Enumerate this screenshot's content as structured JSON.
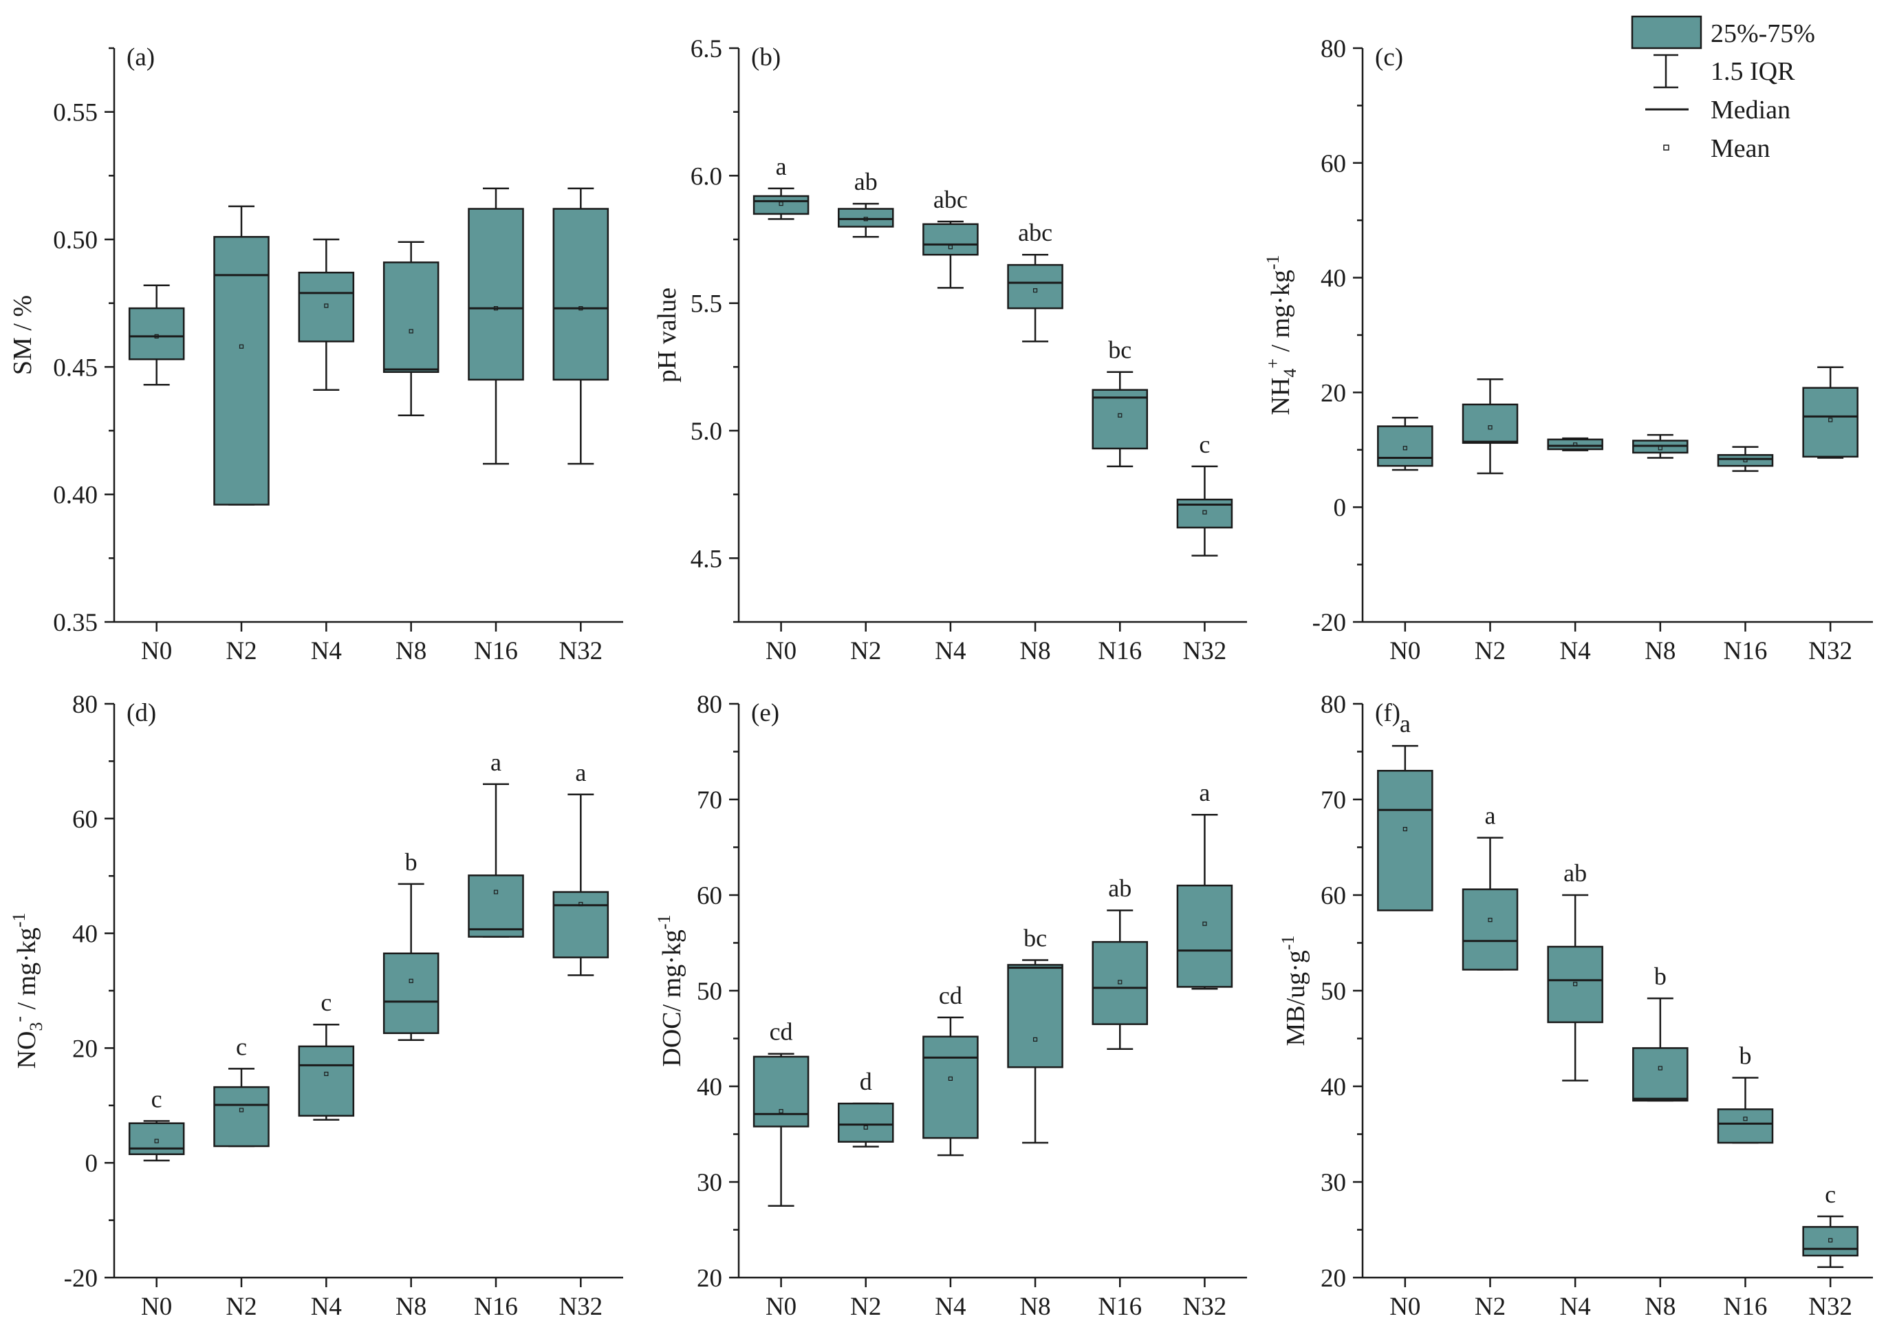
{
  "chart_data": {
    "type": "box",
    "categories": [
      "N0",
      "N2",
      "N4",
      "N8",
      "N16",
      "N32"
    ],
    "colors": {
      "box_fill": "#5f9797",
      "line": "#1a1a1a"
    },
    "legend": {
      "box": "25%-75%",
      "whisker": "1.5 IQR",
      "median": "Median",
      "mean": "Mean"
    },
    "panels": [
      {
        "id": "a",
        "label": "(a)",
        "ylabel": [
          {
            "t": "SM / %"
          }
        ],
        "ylim": [
          0.35,
          0.575
        ],
        "yticks": [
          "0.35",
          "0.40",
          "0.45",
          "0.50",
          "0.55"
        ],
        "boxes": [
          {
            "min": 0.443,
            "q1": 0.453,
            "median": 0.462,
            "q3": 0.473,
            "max": 0.482,
            "mean": 0.462
          },
          {
            "min": 0.396,
            "q1": 0.396,
            "median": 0.486,
            "q3": 0.501,
            "max": 0.513,
            "mean": 0.458
          },
          {
            "min": 0.441,
            "q1": 0.46,
            "median": 0.479,
            "q3": 0.487,
            "max": 0.5,
            "mean": 0.474
          },
          {
            "min": 0.431,
            "q1": 0.448,
            "median": 0.449,
            "q3": 0.491,
            "max": 0.499,
            "mean": 0.464
          },
          {
            "min": 0.412,
            "q1": 0.445,
            "median": 0.473,
            "q3": 0.512,
            "max": 0.52,
            "mean": 0.473
          },
          {
            "min": 0.412,
            "q1": 0.445,
            "median": 0.473,
            "q3": 0.512,
            "max": 0.52,
            "mean": 0.473
          }
        ]
      },
      {
        "id": "b",
        "label": "(b)",
        "ylabel": [
          {
            "t": "pH value"
          }
        ],
        "ylim": [
          4.25,
          6.5
        ],
        "yticks": [
          "4.5",
          "5.0",
          "5.5",
          "6.0",
          "6.5"
        ],
        "boxes": [
          {
            "min": 5.83,
            "q1": 5.85,
            "median": 5.9,
            "q3": 5.92,
            "max": 5.95,
            "mean": 5.89,
            "letter": "a"
          },
          {
            "min": 5.76,
            "q1": 5.8,
            "median": 5.83,
            "q3": 5.87,
            "max": 5.89,
            "mean": 5.83,
            "letter": "ab"
          },
          {
            "min": 5.56,
            "q1": 5.69,
            "median": 5.73,
            "q3": 5.81,
            "max": 5.82,
            "mean": 5.72,
            "letter": "abc"
          },
          {
            "min": 5.35,
            "q1": 5.48,
            "median": 5.58,
            "q3": 5.65,
            "max": 5.69,
            "mean": 5.55,
            "letter": "abc"
          },
          {
            "min": 4.86,
            "q1": 4.93,
            "median": 5.13,
            "q3": 5.16,
            "max": 5.23,
            "mean": 5.06,
            "letter": "bc"
          },
          {
            "min": 4.51,
            "q1": 4.62,
            "median": 4.71,
            "q3": 4.73,
            "max": 4.86,
            "mean": 4.68,
            "letter": "c"
          }
        ]
      },
      {
        "id": "c",
        "label": "(c)",
        "ylabel": [
          {
            "t": "NH"
          },
          {
            "t": "4",
            "sub": true
          },
          {
            "t": "+",
            "sup": true
          },
          {
            "t": " / mg·kg"
          },
          {
            "t": "-1",
            "sup": true
          }
        ],
        "ylim": [
          -20,
          80
        ],
        "yticks": [
          "-20",
          "0",
          "20",
          "40",
          "60",
          "80"
        ],
        "boxes": [
          {
            "min": 6.5,
            "q1": 7.2,
            "median": 8.6,
            "q3": 14.1,
            "max": 15.6,
            "mean": 10.3
          },
          {
            "min": 5.9,
            "q1": 11.2,
            "median": 11.4,
            "q3": 17.9,
            "max": 22.3,
            "mean": 13.9
          },
          {
            "min": 9.9,
            "q1": 10.1,
            "median": 10.7,
            "q3": 11.8,
            "max": 12.0,
            "mean": 10.9
          },
          {
            "min": 8.6,
            "q1": 9.5,
            "median": 10.7,
            "q3": 11.6,
            "max": 12.6,
            "mean": 10.3
          },
          {
            "min": 6.3,
            "q1": 7.2,
            "median": 8.4,
            "q3": 9.1,
            "max": 10.5,
            "mean": 8.2
          },
          {
            "min": 8.6,
            "q1": 8.8,
            "median": 15.8,
            "q3": 20.8,
            "max": 24.4,
            "mean": 15.2
          }
        ]
      },
      {
        "id": "d",
        "label": "(d)",
        "ylabel": [
          {
            "t": "NO"
          },
          {
            "t": "3",
            "sub": true
          },
          {
            "t": "-",
            "sup": true
          },
          {
            "t": " / mg·kg"
          },
          {
            "t": "-1",
            "sup": true
          }
        ],
        "ylim": [
          -20,
          80
        ],
        "yticks": [
          "-20",
          "0",
          "20",
          "40",
          "60",
          "80"
        ],
        "boxes": [
          {
            "min": 0.4,
            "q1": 1.5,
            "median": 2.5,
            "q3": 6.9,
            "max": 7.3,
            "mean": 3.8,
            "letter": "c"
          },
          {
            "min": 2.9,
            "q1": 2.9,
            "median": 10.1,
            "q3": 13.2,
            "max": 16.4,
            "mean": 9.2,
            "letter": "c"
          },
          {
            "min": 7.5,
            "q1": 8.2,
            "median": 17.0,
            "q3": 20.3,
            "max": 24.1,
            "mean": 15.5,
            "letter": "c"
          },
          {
            "min": 21.4,
            "q1": 22.6,
            "median": 28.1,
            "q3": 36.5,
            "max": 48.6,
            "mean": 31.7,
            "letter": "b"
          },
          {
            "min": 39.4,
            "q1": 39.4,
            "median": 40.7,
            "q3": 50.1,
            "max": 66.0,
            "mean": 47.2,
            "letter": "a"
          },
          {
            "min": 32.7,
            "q1": 35.8,
            "median": 44.9,
            "q3": 47.2,
            "max": 64.2,
            "mean": 45.1,
            "letter": "a"
          }
        ]
      },
      {
        "id": "e",
        "label": "(e)",
        "ylabel": [
          {
            "t": "DOC/ mg·kg"
          },
          {
            "t": "-1",
            "sup": true
          }
        ],
        "ylim": [
          20,
          80
        ],
        "yticks": [
          "20",
          "30",
          "40",
          "50",
          "60",
          "70",
          "80"
        ],
        "boxes": [
          {
            "min": 27.5,
            "q1": 35.8,
            "median": 37.1,
            "q3": 43.1,
            "max": 43.4,
            "mean": 37.4,
            "letter": "cd"
          },
          {
            "min": 33.7,
            "q1": 34.2,
            "median": 36.0,
            "q3": 38.2,
            "max": 38.2,
            "mean": 35.7,
            "letter": "d"
          },
          {
            "min": 32.8,
            "q1": 34.6,
            "median": 43.0,
            "q3": 45.2,
            "max": 47.2,
            "mean": 40.8,
            "letter": "cd"
          },
          {
            "min": 34.1,
            "q1": 42.0,
            "median": 52.4,
            "q3": 52.7,
            "max": 53.2,
            "mean": 44.9,
            "letter": "bc"
          },
          {
            "min": 43.9,
            "q1": 46.5,
            "median": 50.3,
            "q3": 55.1,
            "max": 58.4,
            "mean": 50.9,
            "letter": "ab"
          },
          {
            "min": 50.2,
            "q1": 50.4,
            "median": 54.2,
            "q3": 61.0,
            "max": 68.4,
            "mean": 57.0,
            "letter": "a"
          }
        ]
      },
      {
        "id": "f",
        "label": "(f)",
        "ylabel": [
          {
            "t": "MB/ug·g"
          },
          {
            "t": "-1",
            "sup": true
          }
        ],
        "ylim": [
          20,
          80
        ],
        "yticks": [
          "20",
          "30",
          "40",
          "50",
          "60",
          "70",
          "80"
        ],
        "boxes": [
          {
            "min": 58.4,
            "q1": 58.4,
            "median": 68.9,
            "q3": 73.0,
            "max": 75.6,
            "mean": 66.9,
            "letter": "a"
          },
          {
            "min": 52.2,
            "q1": 52.2,
            "median": 55.2,
            "q3": 60.6,
            "max": 66.0,
            "mean": 57.4,
            "letter": "a"
          },
          {
            "min": 40.6,
            "q1": 46.7,
            "median": 51.1,
            "q3": 54.6,
            "max": 60.0,
            "mean": 50.7,
            "letter": "ab"
          },
          {
            "min": 38.5,
            "q1": 38.5,
            "median": 38.7,
            "q3": 44.0,
            "max": 49.2,
            "mean": 41.9,
            "letter": "b"
          },
          {
            "min": 34.1,
            "q1": 34.1,
            "median": 36.1,
            "q3": 37.6,
            "max": 40.9,
            "mean": 36.6,
            "letter": "b"
          },
          {
            "min": 21.1,
            "q1": 22.3,
            "median": 23.0,
            "q3": 25.3,
            "max": 26.4,
            "mean": 23.9,
            "letter": "c"
          }
        ]
      }
    ]
  }
}
